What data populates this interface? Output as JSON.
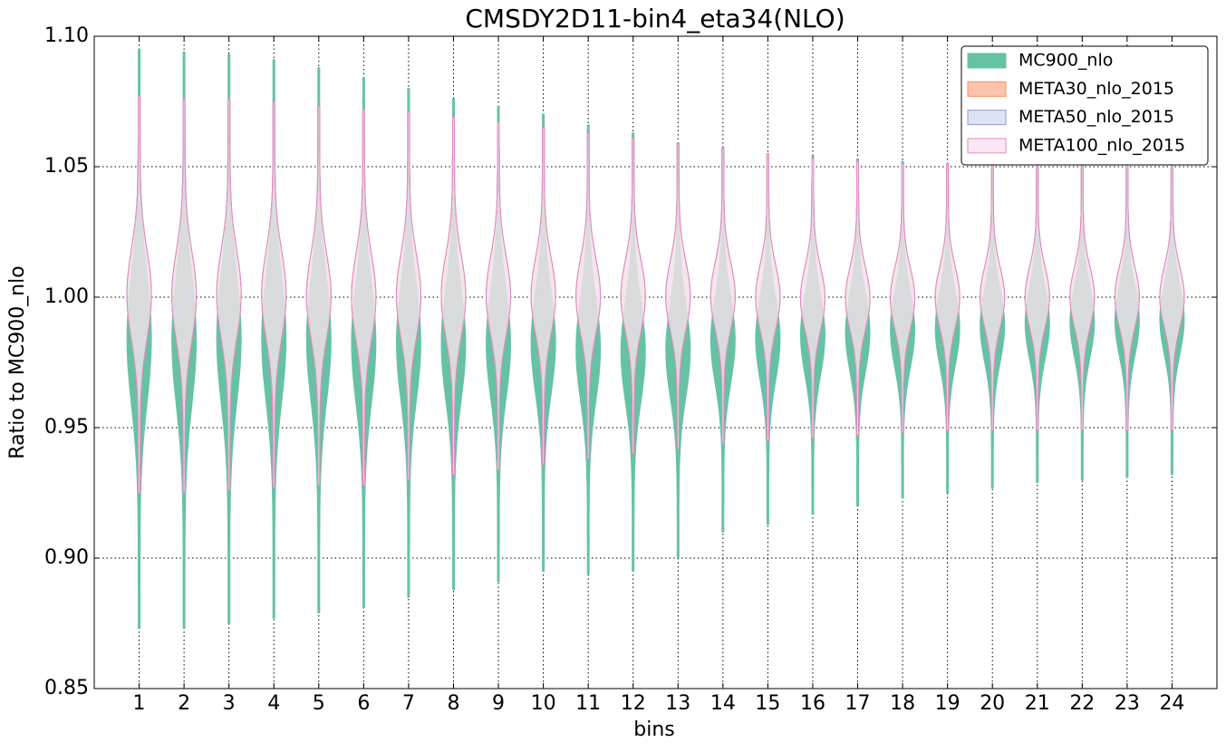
{
  "chart_data": {
    "type": "violin",
    "title": "CMSDY2D11-bin4_eta34(NLO)",
    "x_label": "bins",
    "y_label": "Ratio to MC900_nlo",
    "x": [
      1,
      2,
      3,
      4,
      5,
      6,
      7,
      8,
      9,
      10,
      11,
      12,
      13,
      14,
      15,
      16,
      17,
      18,
      19,
      20,
      21,
      22,
      23,
      24
    ],
    "xlim": [
      0,
      25
    ],
    "xticks": [
      1,
      2,
      3,
      4,
      5,
      6,
      7,
      8,
      9,
      10,
      11,
      12,
      13,
      14,
      15,
      16,
      17,
      18,
      19,
      20,
      21,
      22,
      23,
      24
    ],
    "ylim": [
      0.85,
      1.1
    ],
    "yticks": [
      {
        "value": 0.85,
        "label": "0.85"
      },
      {
        "value": 0.9,
        "label": "0.90"
      },
      {
        "value": 0.95,
        "label": "0.95"
      },
      {
        "value": 1.0,
        "label": "1.00"
      },
      {
        "value": 1.05,
        "label": "1.05"
      },
      {
        "value": 1.1,
        "label": "1.10"
      }
    ],
    "grid": true,
    "legend": "upper right",
    "series": [
      {
        "name": "MC900_nlo",
        "color": "#66c2a5",
        "fill": "#66c2a5",
        "min": [
          0.873,
          0.873,
          0.875,
          0.877,
          0.879,
          0.881,
          0.885,
          0.888,
          0.891,
          0.895,
          0.894,
          0.895,
          0.9,
          0.91,
          0.913,
          0.917,
          0.92,
          0.923,
          0.925,
          0.927,
          0.929,
          0.93,
          0.931,
          0.932
        ],
        "max": [
          1.095,
          1.094,
          1.093,
          1.091,
          1.088,
          1.084,
          1.08,
          1.076,
          1.073,
          1.07,
          1.066,
          1.063,
          1.059,
          1.057,
          1.055,
          1.054,
          1.053,
          1.052,
          1.051,
          1.051,
          1.051,
          1.051,
          1.051,
          1.051
        ]
      },
      {
        "name": "META30_nlo_2015",
        "color": "#fc8d62",
        "fill": "#fdc4ad",
        "min": [
          0.925,
          0.925,
          0.926,
          0.927,
          0.928,
          0.928,
          0.93,
          0.932,
          0.934,
          0.936,
          0.938,
          0.94,
          0.942,
          0.944,
          0.945,
          0.946,
          0.947,
          0.948,
          0.949,
          0.949,
          0.949,
          0.949,
          0.949,
          0.949
        ],
        "max": [
          1.077,
          1.076,
          1.076,
          1.075,
          1.073,
          1.072,
          1.071,
          1.069,
          1.067,
          1.065,
          1.063,
          1.061,
          1.059,
          1.057,
          1.055,
          1.053,
          1.052,
          1.051,
          1.051,
          1.051,
          1.051,
          1.051,
          1.051,
          1.051
        ]
      },
      {
        "name": "META50_nlo_2015",
        "color": "#8da0cb",
        "fill": "#dde3f2",
        "min": [
          0.925,
          0.925,
          0.926,
          0.927,
          0.928,
          0.928,
          0.93,
          0.932,
          0.934,
          0.936,
          0.938,
          0.94,
          0.942,
          0.944,
          0.945,
          0.946,
          0.947,
          0.948,
          0.949,
          0.949,
          0.949,
          0.949,
          0.949,
          0.949
        ],
        "max": [
          1.077,
          1.076,
          1.076,
          1.075,
          1.073,
          1.072,
          1.071,
          1.069,
          1.067,
          1.065,
          1.063,
          1.061,
          1.059,
          1.057,
          1.055,
          1.053,
          1.052,
          1.051,
          1.051,
          1.051,
          1.051,
          1.051,
          1.051,
          1.051
        ]
      },
      {
        "name": "META100_nlo_2015",
        "color": "#e78ac3",
        "fill": "#f9e8f3",
        "min": [
          0.925,
          0.925,
          0.926,
          0.927,
          0.928,
          0.928,
          0.93,
          0.932,
          0.934,
          0.936,
          0.938,
          0.94,
          0.942,
          0.944,
          0.945,
          0.946,
          0.947,
          0.948,
          0.949,
          0.949,
          0.949,
          0.949,
          0.949,
          0.949
        ],
        "max": [
          1.077,
          1.076,
          1.076,
          1.075,
          1.073,
          1.072,
          1.071,
          1.069,
          1.067,
          1.065,
          1.063,
          1.061,
          1.059,
          1.057,
          1.055,
          1.053,
          1.052,
          1.051,
          1.051,
          1.051,
          1.051,
          1.051,
          1.051,
          1.051
        ]
      }
    ]
  }
}
